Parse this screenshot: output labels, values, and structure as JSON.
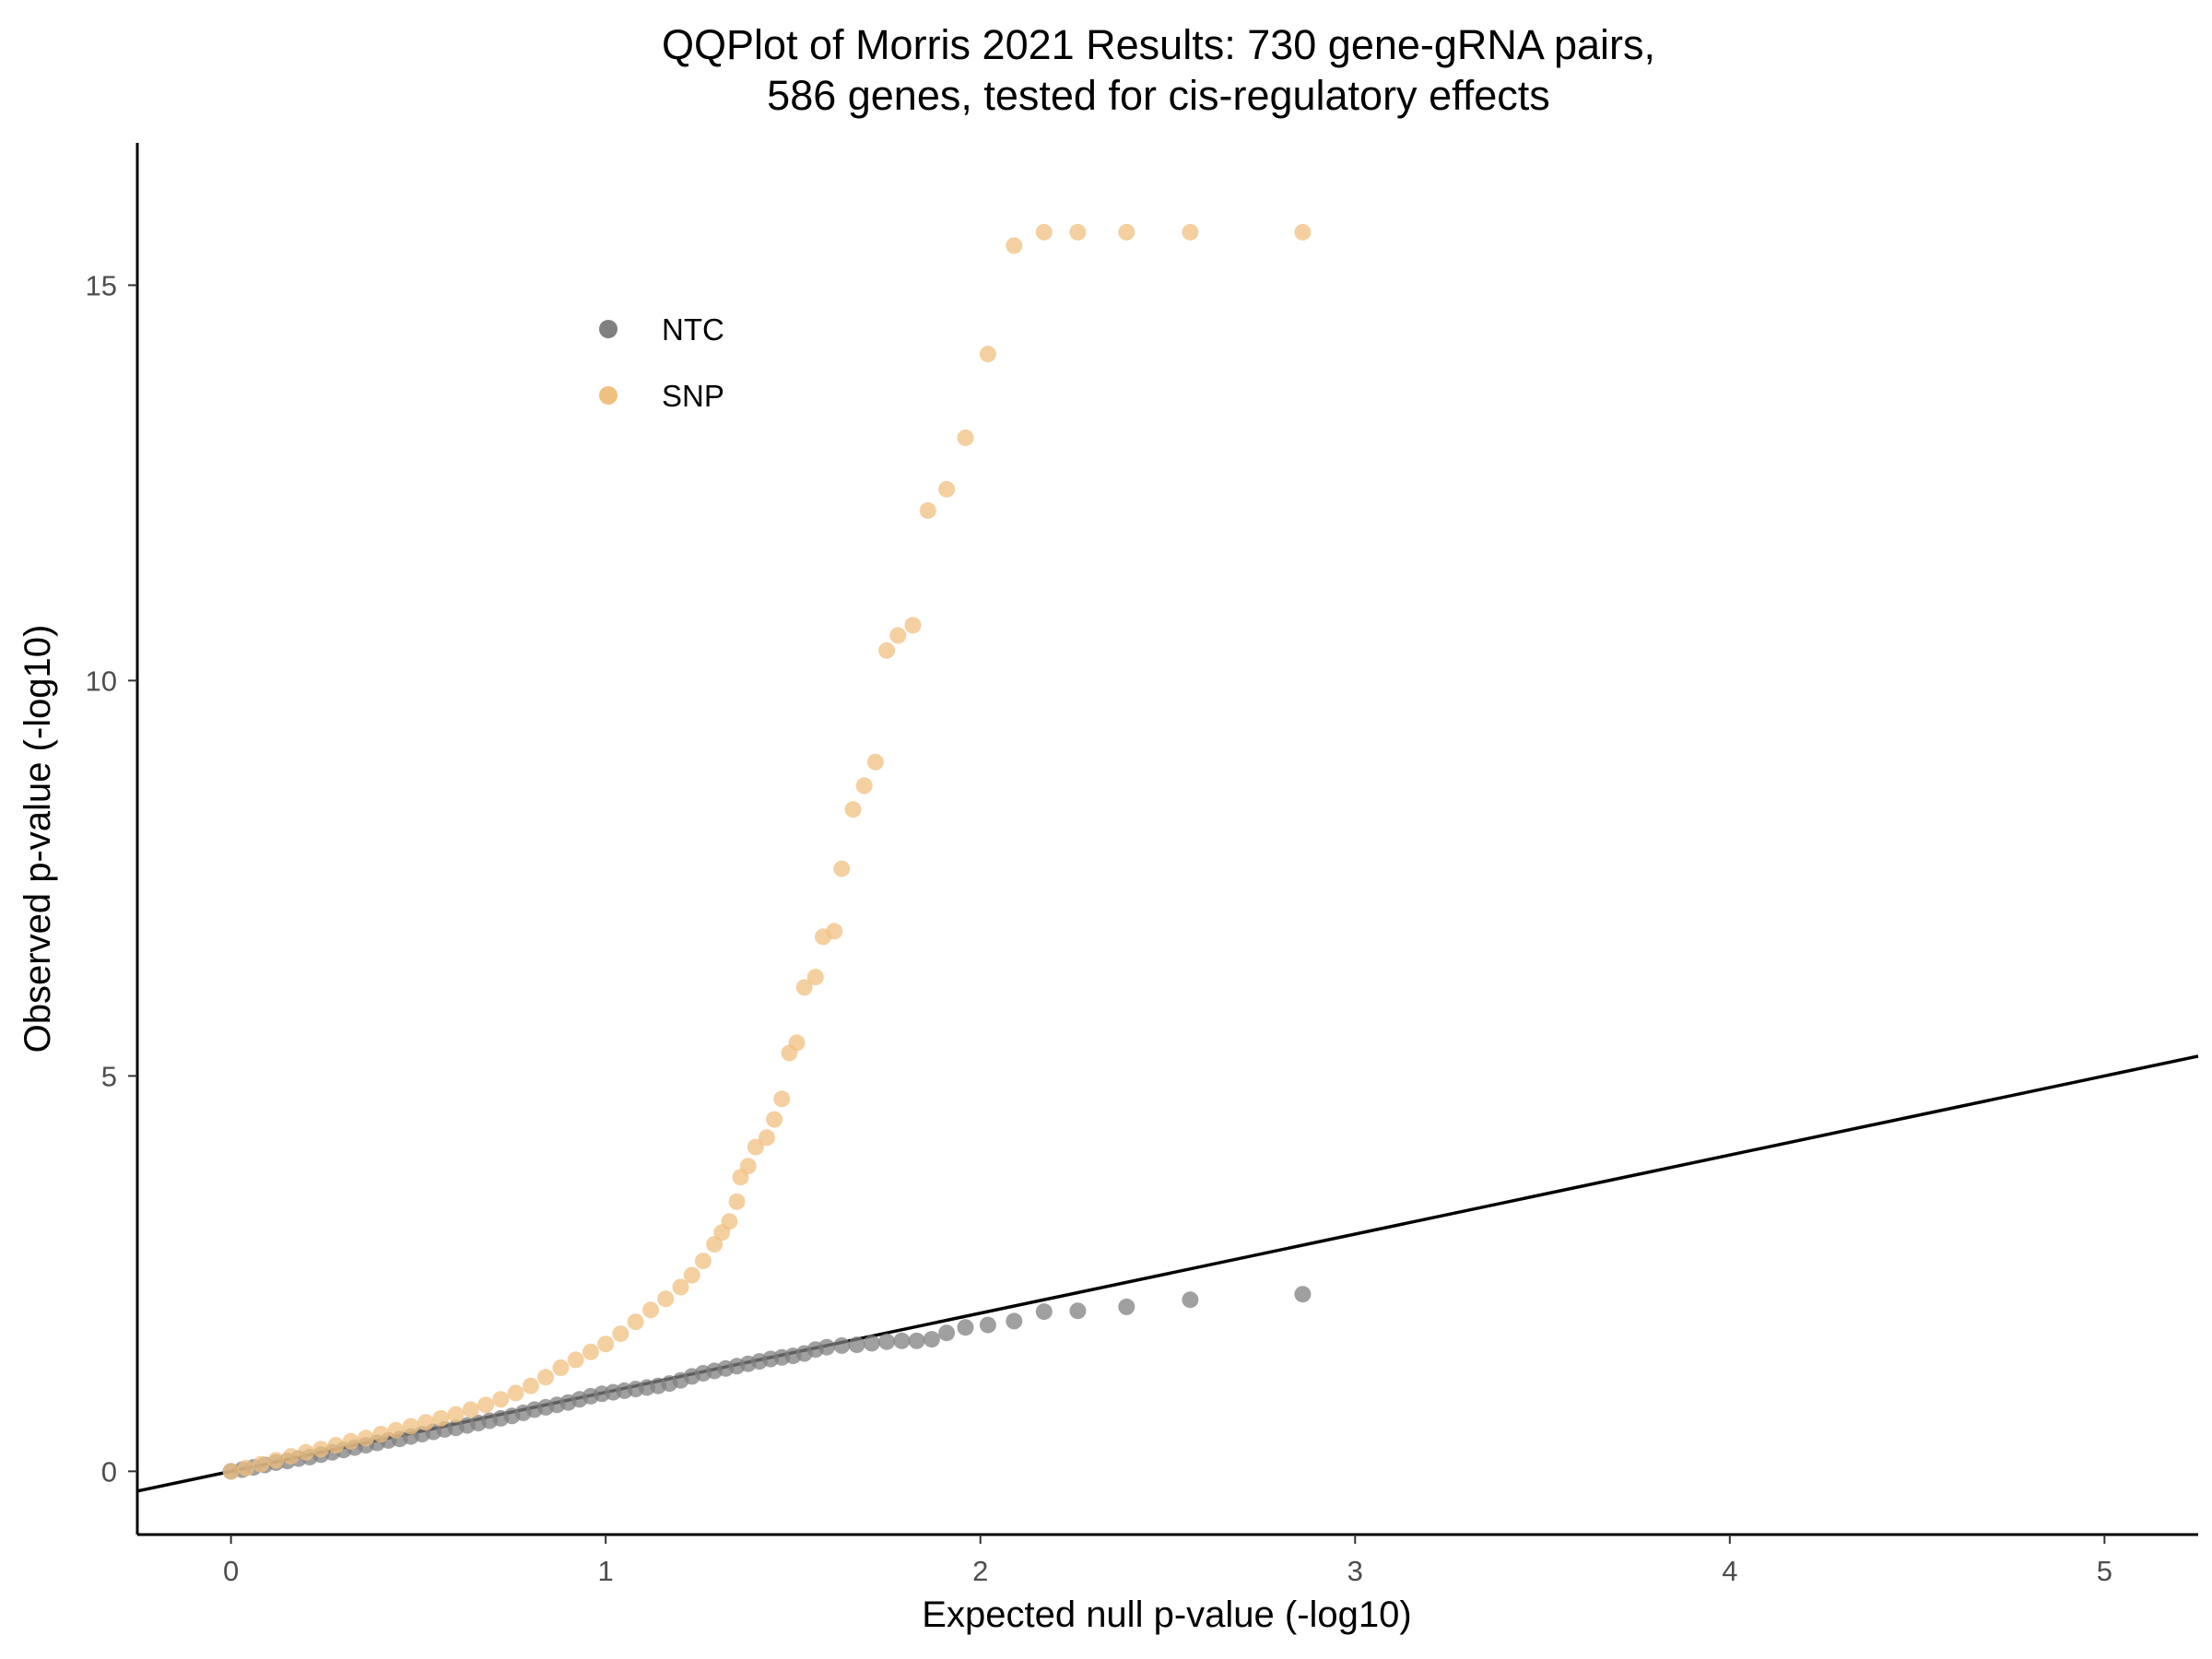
{
  "chart_data": {
    "type": "scatter",
    "title": "QQPlot of Morris 2021 Results: 730 gene-gRNA pairs,",
    "subtitle": "586 genes, tested for cis-regulatory effects",
    "xlabel": "Expected null p-value (-log10)",
    "ylabel": "Observed p-value (-log10)",
    "xlim": [
      -0.25,
      5.25
    ],
    "ylim": [
      -0.8,
      16.8
    ],
    "x_ticks": [
      0,
      1,
      2,
      3,
      4,
      5
    ],
    "y_ticks": [
      0,
      5,
      10,
      15
    ],
    "grid": false,
    "legend_position": "top-left",
    "reference_line": {
      "slope": 1,
      "intercept": 0
    },
    "series": [
      {
        "name": "NTC",
        "color": "#808080",
        "points": [
          [
            0.0,
            0.0
          ],
          [
            0.03,
            0.02
          ],
          [
            0.06,
            0.05
          ],
          [
            0.09,
            0.08
          ],
          [
            0.12,
            0.11
          ],
          [
            0.15,
            0.13
          ],
          [
            0.18,
            0.16
          ],
          [
            0.21,
            0.18
          ],
          [
            0.24,
            0.21
          ],
          [
            0.27,
            0.24
          ],
          [
            0.3,
            0.27
          ],
          [
            0.33,
            0.3
          ],
          [
            0.36,
            0.33
          ],
          [
            0.39,
            0.36
          ],
          [
            0.42,
            0.39
          ],
          [
            0.45,
            0.41
          ],
          [
            0.48,
            0.44
          ],
          [
            0.51,
            0.47
          ],
          [
            0.54,
            0.5
          ],
          [
            0.57,
            0.53
          ],
          [
            0.6,
            0.55
          ],
          [
            0.63,
            0.58
          ],
          [
            0.66,
            0.61
          ],
          [
            0.69,
            0.64
          ],
          [
            0.72,
            0.67
          ],
          [
            0.75,
            0.7
          ],
          [
            0.78,
            0.74
          ],
          [
            0.81,
            0.78
          ],
          [
            0.84,
            0.81
          ],
          [
            0.87,
            0.84
          ],
          [
            0.9,
            0.87
          ],
          [
            0.93,
            0.91
          ],
          [
            0.96,
            0.95
          ],
          [
            0.99,
            0.98
          ],
          [
            1.02,
            1.0
          ],
          [
            1.05,
            1.02
          ],
          [
            1.08,
            1.04
          ],
          [
            1.11,
            1.06
          ],
          [
            1.14,
            1.08
          ],
          [
            1.17,
            1.11
          ],
          [
            1.2,
            1.15
          ],
          [
            1.23,
            1.2
          ],
          [
            1.26,
            1.24
          ],
          [
            1.29,
            1.27
          ],
          [
            1.32,
            1.3
          ],
          [
            1.35,
            1.33
          ],
          [
            1.38,
            1.36
          ],
          [
            1.41,
            1.39
          ],
          [
            1.44,
            1.42
          ],
          [
            1.47,
            1.44
          ],
          [
            1.5,
            1.46
          ],
          [
            1.53,
            1.49
          ],
          [
            1.56,
            1.54
          ],
          [
            1.59,
            1.57
          ],
          [
            1.63,
            1.59
          ],
          [
            1.67,
            1.6
          ],
          [
            1.71,
            1.62
          ],
          [
            1.75,
            1.64
          ],
          [
            1.79,
            1.65
          ],
          [
            1.83,
            1.65
          ],
          [
            1.87,
            1.67
          ],
          [
            1.91,
            1.75
          ],
          [
            1.96,
            1.82
          ],
          [
            2.02,
            1.85
          ],
          [
            2.09,
            1.9
          ],
          [
            2.17,
            2.02
          ],
          [
            2.26,
            2.03
          ],
          [
            2.39,
            2.08
          ],
          [
            2.56,
            2.17
          ],
          [
            2.86,
            2.24
          ]
        ]
      },
      {
        "name": "SNP",
        "color": "#f0c080",
        "points": [
          [
            0.0,
            0.0
          ],
          [
            0.04,
            0.04
          ],
          [
            0.08,
            0.09
          ],
          [
            0.12,
            0.14
          ],
          [
            0.16,
            0.19
          ],
          [
            0.2,
            0.24
          ],
          [
            0.24,
            0.28
          ],
          [
            0.28,
            0.33
          ],
          [
            0.32,
            0.38
          ],
          [
            0.36,
            0.42
          ],
          [
            0.4,
            0.47
          ],
          [
            0.44,
            0.52
          ],
          [
            0.48,
            0.57
          ],
          [
            0.52,
            0.62
          ],
          [
            0.56,
            0.67
          ],
          [
            0.6,
            0.72
          ],
          [
            0.64,
            0.78
          ],
          [
            0.68,
            0.84
          ],
          [
            0.72,
            0.91
          ],
          [
            0.76,
            0.99
          ],
          [
            0.8,
            1.08
          ],
          [
            0.84,
            1.19
          ],
          [
            0.88,
            1.31
          ],
          [
            0.92,
            1.41
          ],
          [
            0.96,
            1.51
          ],
          [
            1.0,
            1.61
          ],
          [
            1.04,
            1.74
          ],
          [
            1.08,
            1.89
          ],
          [
            1.12,
            2.04
          ],
          [
            1.16,
            2.18
          ],
          [
            1.2,
            2.33
          ],
          [
            1.23,
            2.48
          ],
          [
            1.26,
            2.66
          ],
          [
            1.29,
            2.87
          ],
          [
            1.31,
            3.02
          ],
          [
            1.33,
            3.16
          ],
          [
            1.35,
            3.41
          ],
          [
            1.36,
            3.72
          ],
          [
            1.38,
            3.86
          ],
          [
            1.4,
            4.1
          ],
          [
            1.43,
            4.22
          ],
          [
            1.45,
            4.45
          ],
          [
            1.47,
            4.71
          ],
          [
            1.49,
            5.29
          ],
          [
            1.51,
            5.42
          ],
          [
            1.53,
            6.12
          ],
          [
            1.56,
            6.25
          ],
          [
            1.58,
            6.76
          ],
          [
            1.61,
            6.83
          ],
          [
            1.63,
            7.62
          ],
          [
            1.66,
            8.37
          ],
          [
            1.69,
            8.67
          ],
          [
            1.72,
            8.97
          ],
          [
            1.75,
            10.38
          ],
          [
            1.78,
            10.57
          ],
          [
            1.82,
            10.7
          ],
          [
            1.86,
            12.15
          ],
          [
            1.91,
            12.42
          ],
          [
            1.96,
            13.07
          ],
          [
            2.02,
            14.13
          ],
          [
            2.09,
            15.5
          ],
          [
            2.17,
            15.67
          ],
          [
            2.26,
            15.67
          ],
          [
            2.39,
            15.67
          ],
          [
            2.56,
            15.67
          ],
          [
            2.86,
            15.67
          ]
        ]
      }
    ]
  }
}
